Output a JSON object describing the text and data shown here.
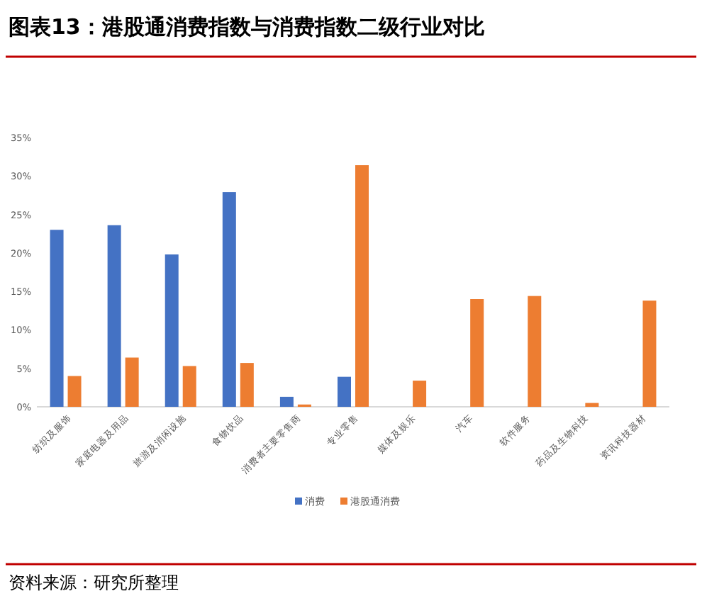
{
  "chart_data": {
    "type": "bar",
    "title": "图表13：港股通消费指数与消费指数二级行业对比",
    "categories": [
      "纺织及服饰",
      "家庭电器及用品",
      "旅游及消闲设施",
      "食物饮品",
      "消费者主要零售商",
      "专业零售",
      "媒体及娱乐",
      "汽车",
      "软件服务",
      "药品及生物科技",
      "资讯科技器材"
    ],
    "series": [
      {
        "name": "消费",
        "color": "#4472c4",
        "values": [
          23.0,
          23.6,
          19.8,
          27.9,
          1.3,
          3.9,
          null,
          null,
          null,
          null,
          null
        ]
      },
      {
        "name": "港股通消费",
        "color": "#ed7d31",
        "values": [
          4.0,
          6.4,
          5.3,
          5.7,
          0.3,
          31.4,
          3.4,
          14.0,
          14.4,
          0.5,
          13.8
        ]
      }
    ],
    "ylim": [
      0,
      35
    ],
    "yticks": [
      {
        "value": 0,
        "label": "0%"
      },
      {
        "value": 5,
        "label": "5%"
      },
      {
        "value": 10,
        "label": "10%"
      },
      {
        "value": 15,
        "label": "15%"
      },
      {
        "value": 20,
        "label": "20%"
      },
      {
        "value": 25,
        "label": "25%"
      },
      {
        "value": 30,
        "label": "30%"
      },
      {
        "value": 35,
        "label": "35%"
      }
    ],
    "grid": false,
    "legend": "bottom",
    "annotations": [
      "资料来源：研究所整理"
    ]
  }
}
